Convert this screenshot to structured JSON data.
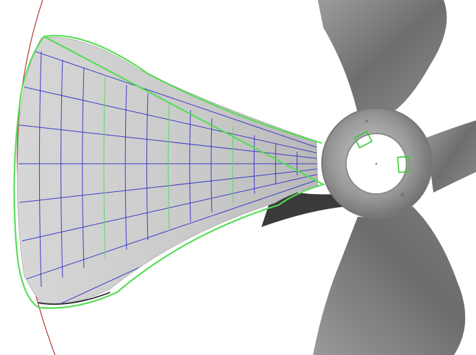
{
  "scene": {
    "subject": "propeller-blade-scan",
    "blade_count": 4,
    "grid": {
      "radial_lines": 11,
      "arc_lines": 13
    },
    "highlighted_arc_lines": [
      3,
      6,
      9
    ],
    "markers": 2
  },
  "colors": {
    "background": "#ffffff",
    "blade_mesh": "#c9c9c9",
    "blade_shadow": "#7d7d7d",
    "grid_line": "#3838c8",
    "boundary_curve": "#55dd55",
    "reference_arc": "#b03030",
    "hub": "#9a9a9a"
  }
}
